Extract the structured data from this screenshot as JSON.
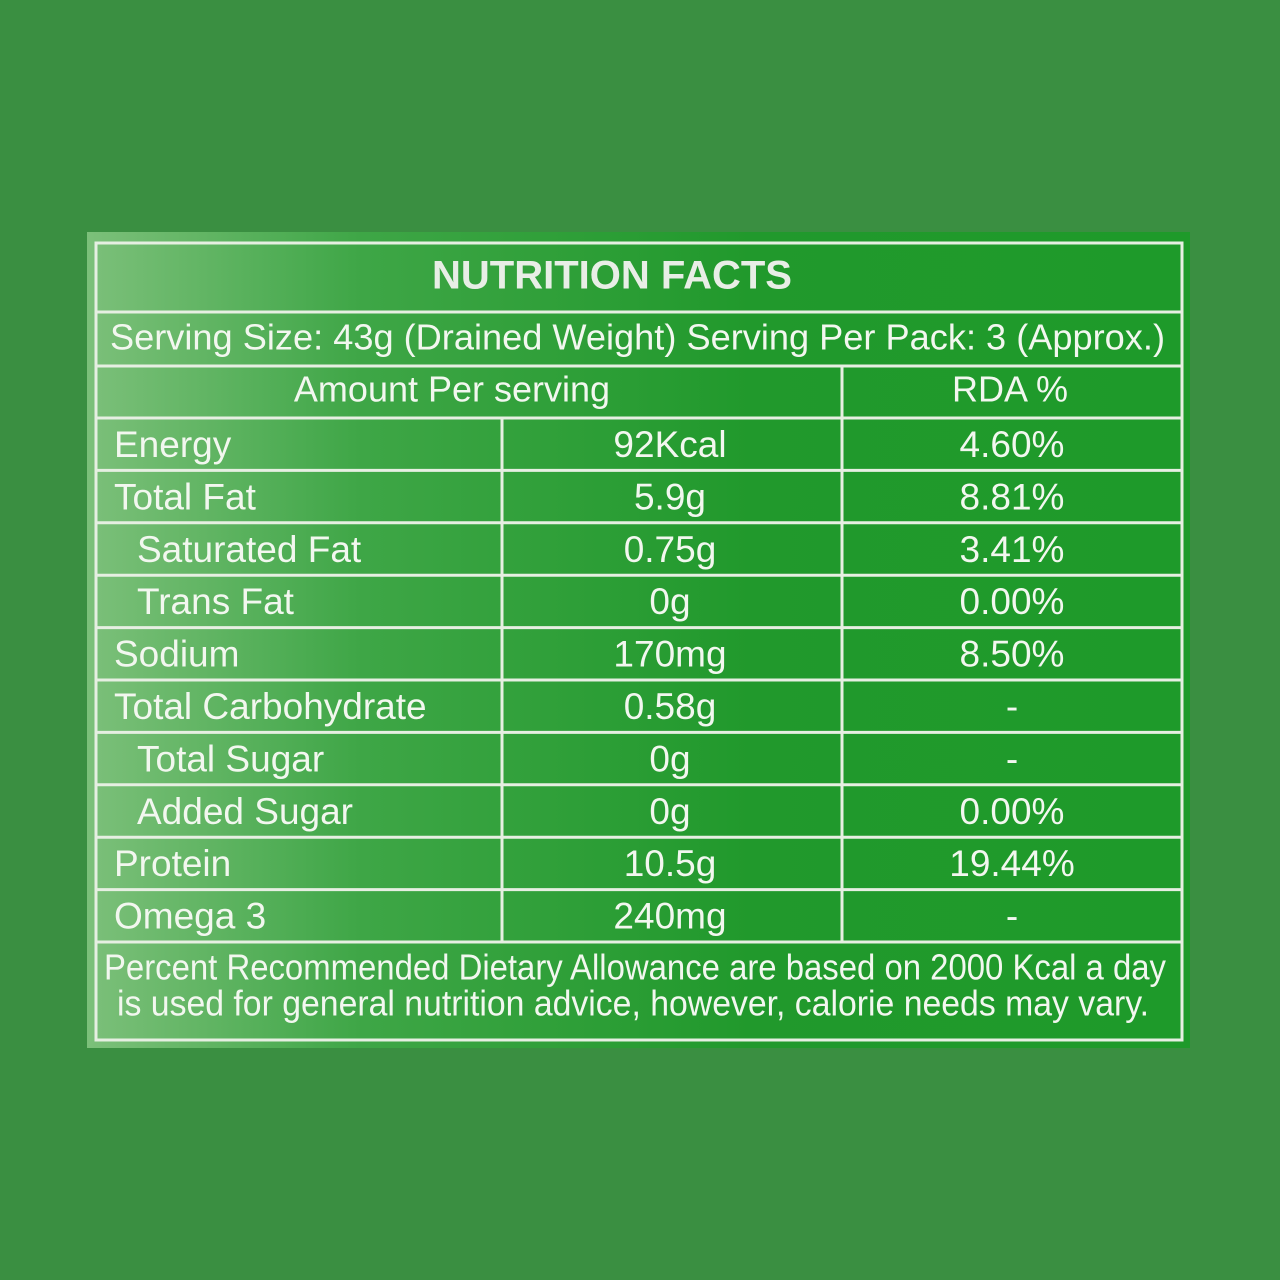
{
  "label": {
    "title": "NUTRITION FACTS",
    "serving": "Serving Size: 43g (Drained Weight) Serving Per Pack: 3 (Approx.)",
    "header": [
      "Amount Per serving",
      "RDA %"
    ],
    "rows": [
      [
        "Energy",
        "92Kcal",
        "4.60%"
      ],
      [
        "Total Fat",
        "5.9g",
        "8.81%"
      ],
      [
        "Saturated Fat",
        "0.75g",
        "3.41%"
      ],
      [
        "Trans Fat",
        "0g",
        "0.00%"
      ],
      [
        "Sodium",
        "170mg",
        "8.50%"
      ],
      [
        "Total Carbohydrate",
        "0.58g",
        "-"
      ],
      [
        "Total Sugar",
        "0g",
        "-"
      ],
      [
        "Added Sugar",
        "0g",
        "0.00%"
      ],
      [
        "Protein",
        "10.5g",
        "19.44%"
      ],
      [
        "Omega 3",
        "240mg",
        "-"
      ]
    ],
    "footer": [
      "Percent Recommended Dietary Allowance are based on 2000 Kcal a day",
      "is used for general nutrition advice, however, calorie needs may vary."
    ]
  }
}
